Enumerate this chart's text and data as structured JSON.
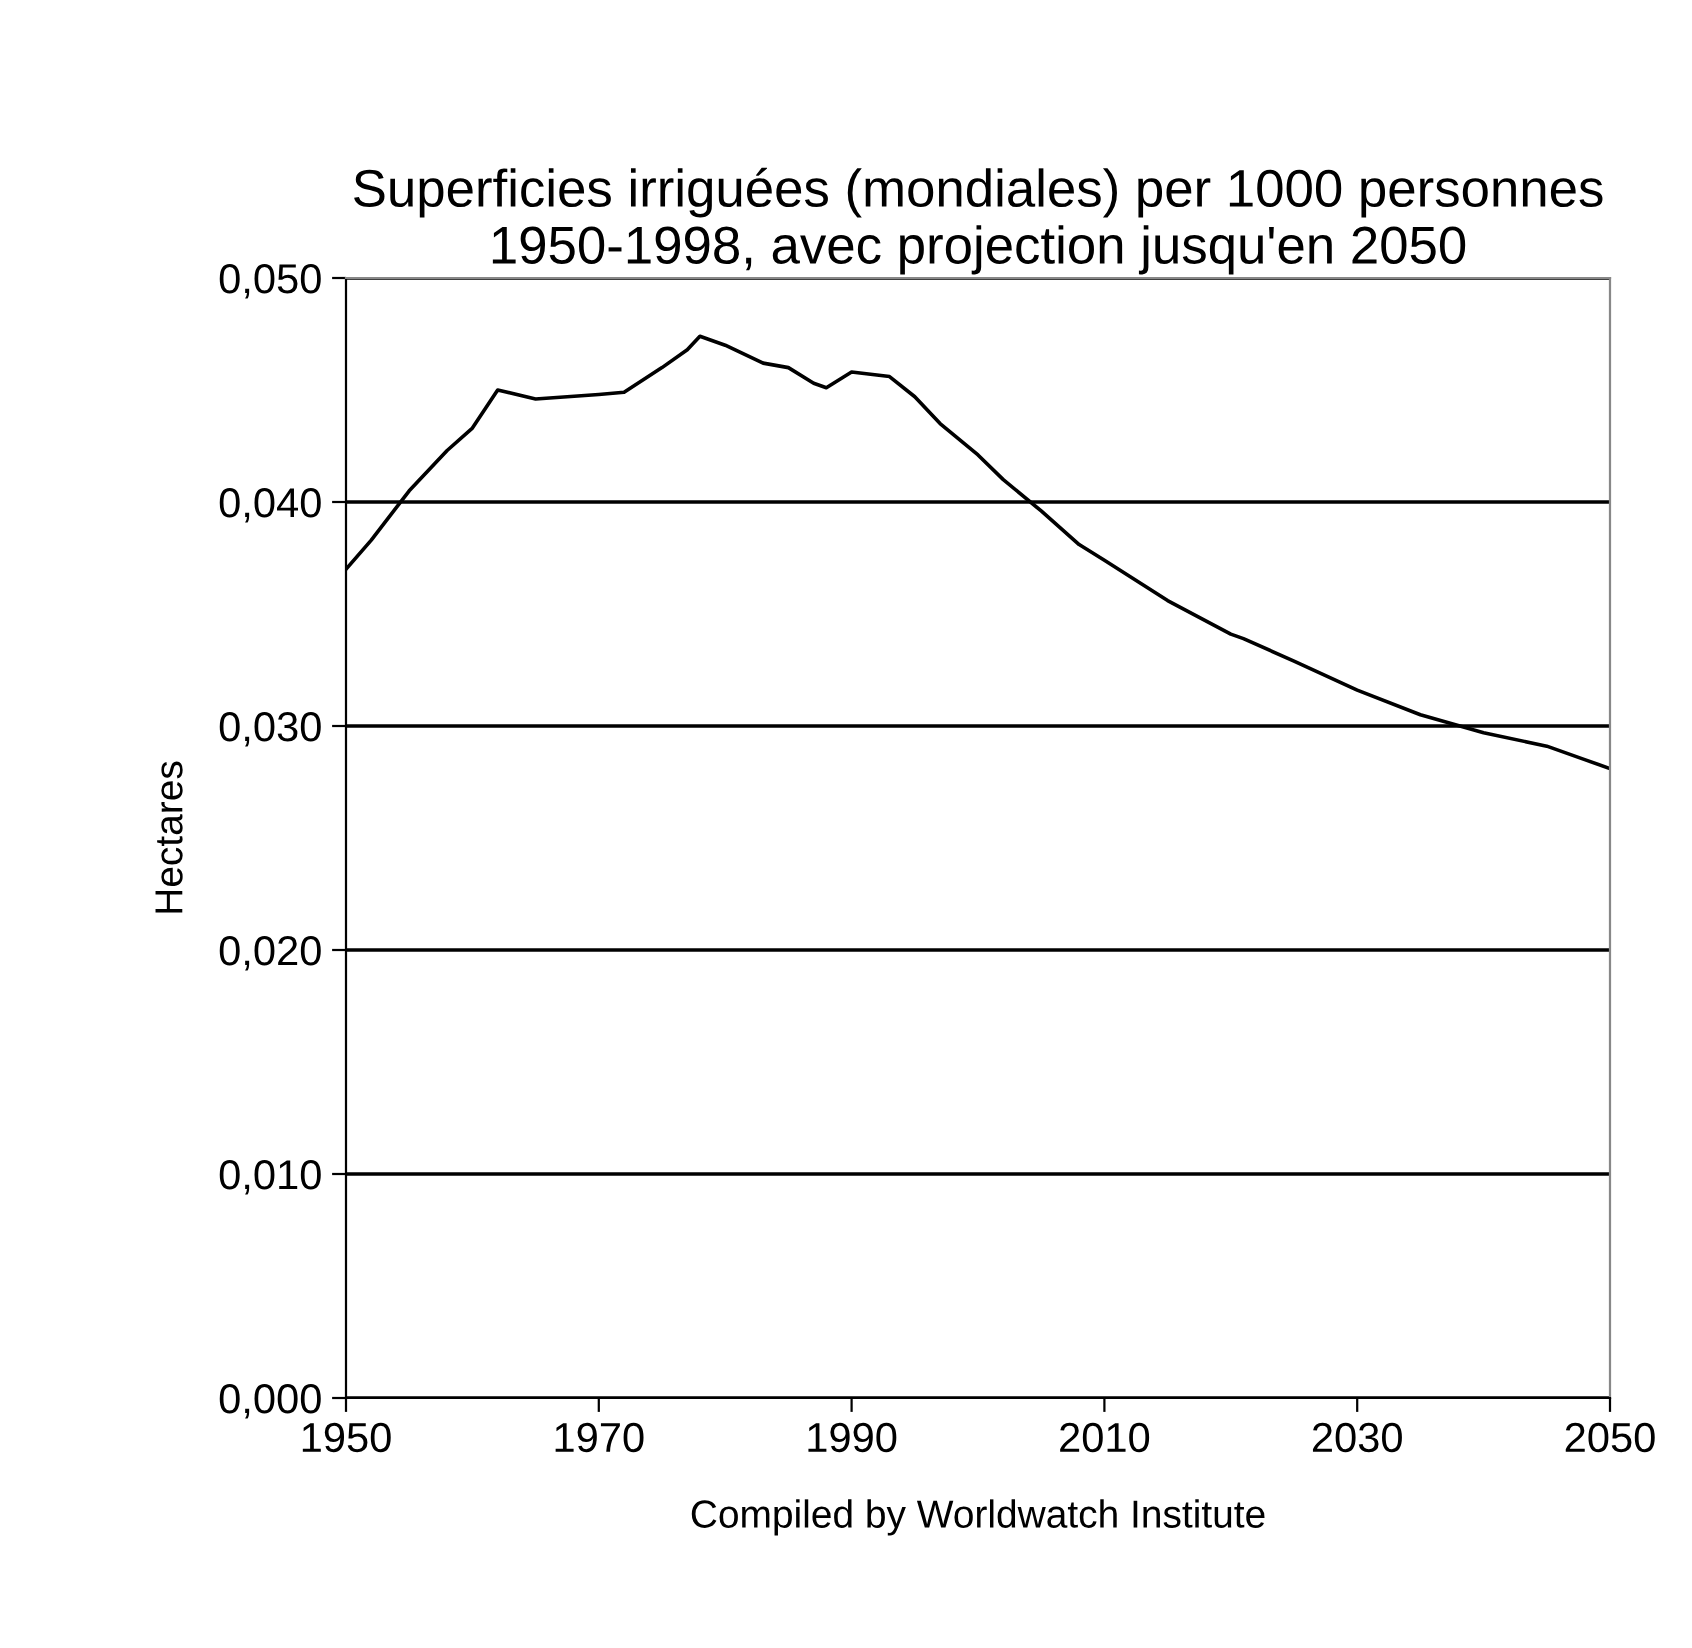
{
  "chart_data": {
    "type": "line",
    "title": "Superficies irriguées (mondiales) per 1000 personnes 1950-1998, avec projection jusqu'en 2050",
    "ylabel": "Hectares",
    "xlabel": "Compiled by Worldwatch Institute",
    "x": [
      1950,
      1952,
      1955,
      1958,
      1960,
      1962,
      1965,
      1970,
      1972,
      1975,
      1977,
      1978,
      1980,
      1983,
      1985,
      1987,
      1988,
      1990,
      1993,
      1995,
      1997,
      2000,
      2002,
      2005,
      2008,
      2010,
      2015,
      2020,
      2021,
      2025,
      2030,
      2035,
      2040,
      2045,
      2048,
      2050
    ],
    "series": [
      {
        "color": "#000000",
        "values": [
          0.037,
          0.0383,
          0.0405,
          0.0423,
          0.0433,
          0.045,
          0.0446,
          0.0448,
          0.0449,
          0.046,
          0.0468,
          0.0474,
          0.047,
          0.0462,
          0.046,
          0.0453,
          0.0451,
          0.0458,
          0.0456,
          0.0447,
          0.0435,
          0.0421,
          0.041,
          0.0396,
          0.0381,
          0.0374,
          0.0356,
          0.0341,
          0.0339,
          0.0329,
          0.0316,
          0.0305,
          0.0297,
          0.0291,
          0.0285,
          0.0281
        ]
      }
    ],
    "xlim": [
      1950,
      2050
    ],
    "xticks": [
      1950,
      1970,
      1990,
      2010,
      2030,
      2050
    ],
    "ylim": [
      0,
      0.05
    ],
    "yticks": [
      {
        "value": 0,
        "label": "0,000"
      },
      {
        "value": 0.01,
        "label": "0,010"
      },
      {
        "value": 0.02,
        "label": "0,020"
      },
      {
        "value": 0.03,
        "label": "0,030"
      },
      {
        "value": 0.04,
        "label": "0,040"
      },
      {
        "value": 0.05,
        "label": "0,050"
      }
    ],
    "grid": "y",
    "legend": false,
    "marker": "none",
    "line_style": "solid"
  }
}
